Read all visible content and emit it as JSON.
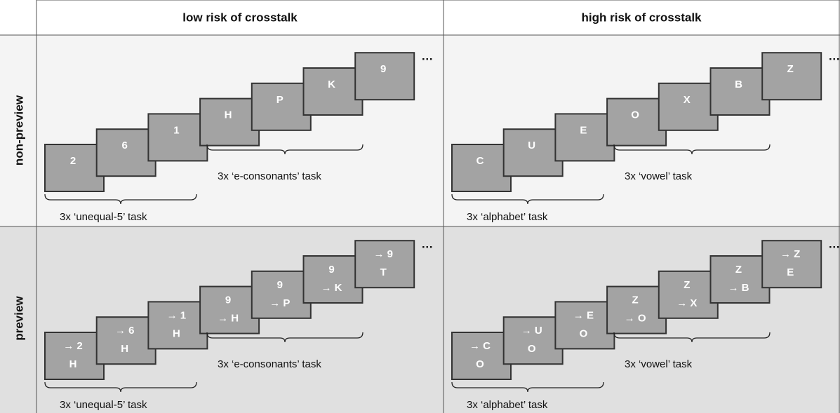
{
  "columns": [
    "low risk of crosstalk",
    "high risk of crosstalk"
  ],
  "rows": [
    "non-preview",
    "preview"
  ],
  "cells": [
    {
      "cards": [
        [
          "2"
        ],
        [
          "6"
        ],
        [
          "1"
        ],
        [
          "H"
        ],
        [
          "P"
        ],
        [
          "K"
        ],
        [
          "9"
        ]
      ],
      "more": "…",
      "braces": [
        "3x ‘unequal-5’ task",
        "3x ‘e-consonants’ task"
      ]
    },
    {
      "cards": [
        [
          "C"
        ],
        [
          "U"
        ],
        [
          "E"
        ],
        [
          "O"
        ],
        [
          "X"
        ],
        [
          "B"
        ],
        [
          "Z"
        ]
      ],
      "more": "…",
      "braces": [
        "3x ‘alphabet’ task",
        "3x ‘vowel’ task"
      ]
    },
    {
      "cards": [
        [
          "→ 2",
          "H"
        ],
        [
          "→ 6",
          "H"
        ],
        [
          "→ 1",
          "H"
        ],
        [
          "9",
          "→ H"
        ],
        [
          "9",
          "→ P"
        ],
        [
          "9",
          "→ K"
        ],
        [
          "→ 9",
          "T"
        ]
      ],
      "more": "…",
      "braces": [
        "3x ‘unequal-5’ task",
        "3x ‘e-consonants’ task"
      ]
    },
    {
      "cards": [
        [
          "→ C",
          "O"
        ],
        [
          "→ U",
          "O"
        ],
        [
          "→ E",
          "O"
        ],
        [
          "Z",
          "→ O"
        ],
        [
          "Z",
          "→ X"
        ],
        [
          "Z",
          "→ B"
        ],
        [
          "→ Z",
          "E"
        ]
      ],
      "more": "…",
      "braces": [
        "3x ‘alphabet’ task",
        "3x ‘vowel’ task"
      ]
    }
  ]
}
